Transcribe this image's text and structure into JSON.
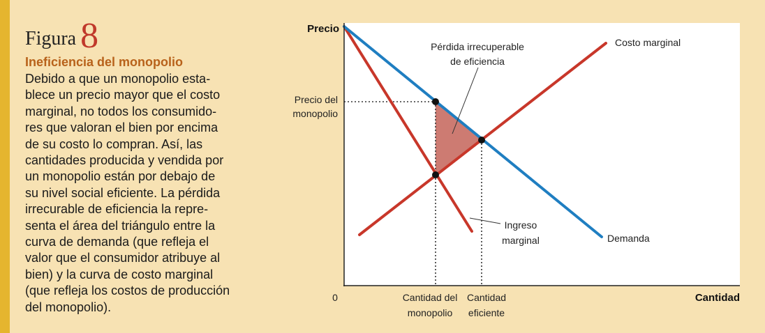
{
  "figure": {
    "word": "Figura",
    "number": "8"
  },
  "caption": {
    "title": "Ineficiencia del monopolio",
    "body_lines": [
      "Debido a que un monopolio esta-",
      "blece un precio mayor que el costo",
      "marginal, no todos los consumido-",
      "res que valoran el bien por encima",
      "de su costo lo compran. Así, las",
      "cantidades producida y vendida por",
      "un monopolio están por debajo de",
      "su nivel social eficiente. La pérdida",
      "irrecurable de eficiencia la repre-",
      "senta el área del triángulo entre la",
      "curva de demanda (que refleja el",
      "valor que el consumidor atribuye al",
      "bien) y la curva de costo marginal",
      "(que refleja los costos de producción",
      "del monopolio)."
    ]
  },
  "colors": {
    "background": "#f7e2b3",
    "left_bar": "#e5b52f",
    "plot_bg": "#ffffff",
    "demand": "#1f7ec1",
    "red_curves": "#c8372a",
    "triangle_fill": "#cd7b72",
    "caption_title": "#b8621b",
    "figure_number": "#c0392b"
  },
  "chart_data": {
    "type": "diagram",
    "y_axis_label": "Precio",
    "x_axis_label": "Cantidad",
    "origin_label": "0",
    "y_tick_labels": [
      {
        "lines": [
          "Precio del",
          "monopolio"
        ]
      }
    ],
    "x_tick_labels": [
      {
        "lines": [
          "Cantidad del",
          "monopolio"
        ]
      },
      {
        "lines": [
          "Cantidad",
          "eficiente"
        ]
      }
    ],
    "curve_labels": {
      "marginal_cost": "Costo marginal",
      "demand": "Demanda",
      "marginal_revenue": [
        "Ingreso",
        "marginal"
      ],
      "deadweight_loss": [
        "Pérdida irrecuperable",
        "de eficiencia"
      ]
    },
    "series": [
      {
        "name": "Demanda"
      },
      {
        "name": "Costo marginal"
      },
      {
        "name": "Ingreso marginal"
      }
    ]
  }
}
